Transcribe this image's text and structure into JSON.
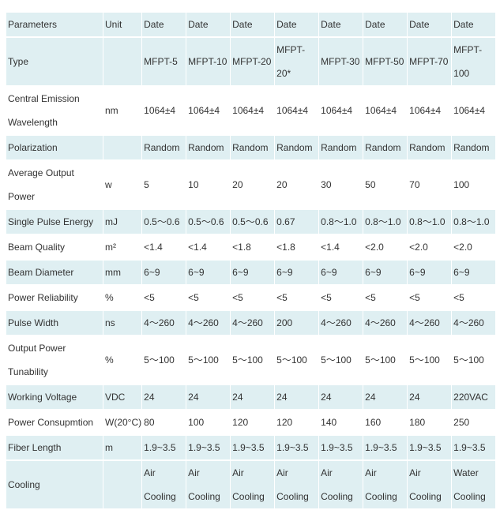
{
  "table": {
    "header": {
      "param": "Parameters",
      "unit": "Unit",
      "cols": [
        "Date",
        "Date",
        "Date",
        "Date",
        "Date",
        "Date",
        "Date",
        "Date"
      ]
    },
    "rows": [
      {
        "param": "Type",
        "unit": "",
        "values": [
          "MFPT-5",
          "MFPT-10",
          "MFPT-20",
          "MFPT-20*",
          "MFPT-30",
          "MFPT-50",
          "MFPT-70",
          "MFPT-100"
        ]
      },
      {
        "param": "Central Emission Wavelength",
        "unit": "nm",
        "values": [
          "1064±4",
          "1064±4",
          "1064±4",
          "1064±4",
          "1064±4",
          "1064±4",
          "1064±4",
          "1064±4"
        ]
      },
      {
        "param": "Polarization",
        "unit": "",
        "values": [
          "Random",
          "Random",
          "Random",
          "Random",
          "Random",
          "Random",
          "Random",
          "Random"
        ]
      },
      {
        "param": "Average Output Power",
        "unit": "w",
        "values": [
          "5",
          "10",
          "20",
          "20",
          "30",
          "50",
          "70",
          "100"
        ]
      },
      {
        "param": "Single Pulse Energy",
        "unit": "mJ",
        "values": [
          "0.5～0.6",
          "0.5～0.6",
          "0.5～0.6",
          "0.67",
          "0.8～1.0",
          "0.8～1.0",
          "0.8～1.0",
          "0.8～1.0"
        ]
      },
      {
        "param": "Beam Quality",
        "unit": "m²",
        "values": [
          "<1.4",
          "<1.4",
          "<1.8",
          "<1.8",
          "<1.4",
          "<2.0",
          "<2.0",
          "<2.0"
        ]
      },
      {
        "param": "Beam Diameter",
        "unit": "mm",
        "values": [
          "6~9",
          "6~9",
          "6~9",
          "6~9",
          "6~9",
          "6~9",
          "6~9",
          "6~9"
        ]
      },
      {
        "param": "Power Reliability",
        "unit": "%",
        "values": [
          "<5",
          "<5",
          "<5",
          "<5",
          "<5",
          "<5",
          "<5",
          "<5"
        ]
      },
      {
        "param": "Pulse Width",
        "unit": "ns",
        "values": [
          "4～260",
          "4～260",
          "4～260",
          "200",
          "4～260",
          "4～260",
          "4～260",
          "4～260"
        ]
      },
      {
        "param": "Output Power Tunability",
        "unit": "%",
        "values": [
          "5～100",
          "5～100",
          "5～100",
          "5～100",
          "5～100",
          "5～100",
          "5～100",
          "5～100"
        ]
      },
      {
        "param": "Working Voltage",
        "unit": "VDC",
        "values": [
          "24",
          "24",
          "24",
          "24",
          "24",
          "24",
          "24",
          "220VAC"
        ]
      },
      {
        "param": "Power Consupmtion",
        "unit": "W(20°C)",
        "values": [
          "80",
          "100",
          "120",
          "120",
          "140",
          "160",
          "180",
          "250"
        ]
      },
      {
        "param": "Fiber Length",
        "unit": "m",
        "values": [
          "1.9~3.5",
          "1.9~3.5",
          "1.9~3.5",
          "1.9~3.5",
          "1.9~3.5",
          "1.9~3.5",
          "1.9~3.5",
          "1.9~3.5"
        ]
      },
      {
        "param": "Cooling",
        "unit": "",
        "values": [
          "Air Cooling",
          "Air Cooling",
          "Air Cooling",
          "Air Cooling",
          "Air Cooling",
          "Air Cooling",
          "Air Cooling",
          "Water Cooling"
        ]
      }
    ]
  }
}
